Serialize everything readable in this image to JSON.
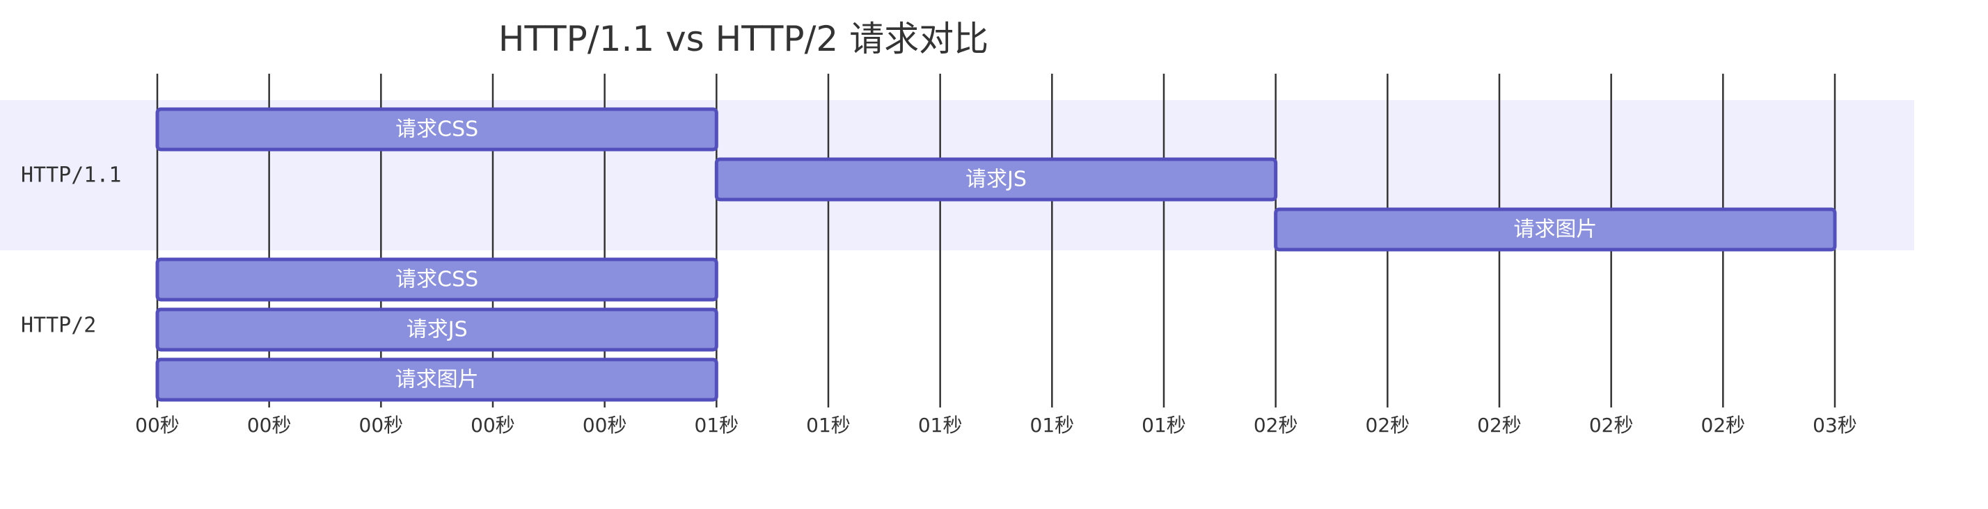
{
  "colors": {
    "section_band_odd": "#efeffd",
    "section_band_even": "#ffffff",
    "bar_fill": "#8a90dd",
    "bar_stroke": "#534fbc",
    "grid": "#333333",
    "text": "#333333",
    "bar_text": "#ffffff"
  },
  "chart_data": {
    "type": "gantt",
    "title": "HTTP/1.1 vs HTTP/2 请求对比",
    "x_unit": "seconds",
    "xlim": [
      0,
      3.0
    ],
    "grid": true,
    "ticks": [
      {
        "value": 0.0,
        "label": "00秒"
      },
      {
        "value": 0.2,
        "label": "00秒"
      },
      {
        "value": 0.4,
        "label": "00秒"
      },
      {
        "value": 0.6,
        "label": "00秒"
      },
      {
        "value": 0.8,
        "label": "00秒"
      },
      {
        "value": 1.0,
        "label": "01秒"
      },
      {
        "value": 1.2,
        "label": "01秒"
      },
      {
        "value": 1.4,
        "label": "01秒"
      },
      {
        "value": 1.6,
        "label": "01秒"
      },
      {
        "value": 1.8,
        "label": "01秒"
      },
      {
        "value": 2.0,
        "label": "02秒"
      },
      {
        "value": 2.2,
        "label": "02秒"
      },
      {
        "value": 2.4,
        "label": "02秒"
      },
      {
        "value": 2.6,
        "label": "02秒"
      },
      {
        "value": 2.8,
        "label": "02秒"
      },
      {
        "value": 3.0,
        "label": "03秒"
      }
    ],
    "sections": [
      {
        "name": "HTTP/1.1",
        "tasks": [
          {
            "label": "请求CSS",
            "start": 0.0,
            "end": 1.0
          },
          {
            "label": "请求JS",
            "start": 1.0,
            "end": 2.0
          },
          {
            "label": "请求图片",
            "start": 2.0,
            "end": 3.0
          }
        ]
      },
      {
        "name": "HTTP/2",
        "tasks": [
          {
            "label": "请求CSS",
            "start": 0.0,
            "end": 1.0
          },
          {
            "label": "请求JS",
            "start": 0.0,
            "end": 1.0
          },
          {
            "label": "请求图片",
            "start": 0.0,
            "end": 1.0
          }
        ]
      }
    ]
  }
}
